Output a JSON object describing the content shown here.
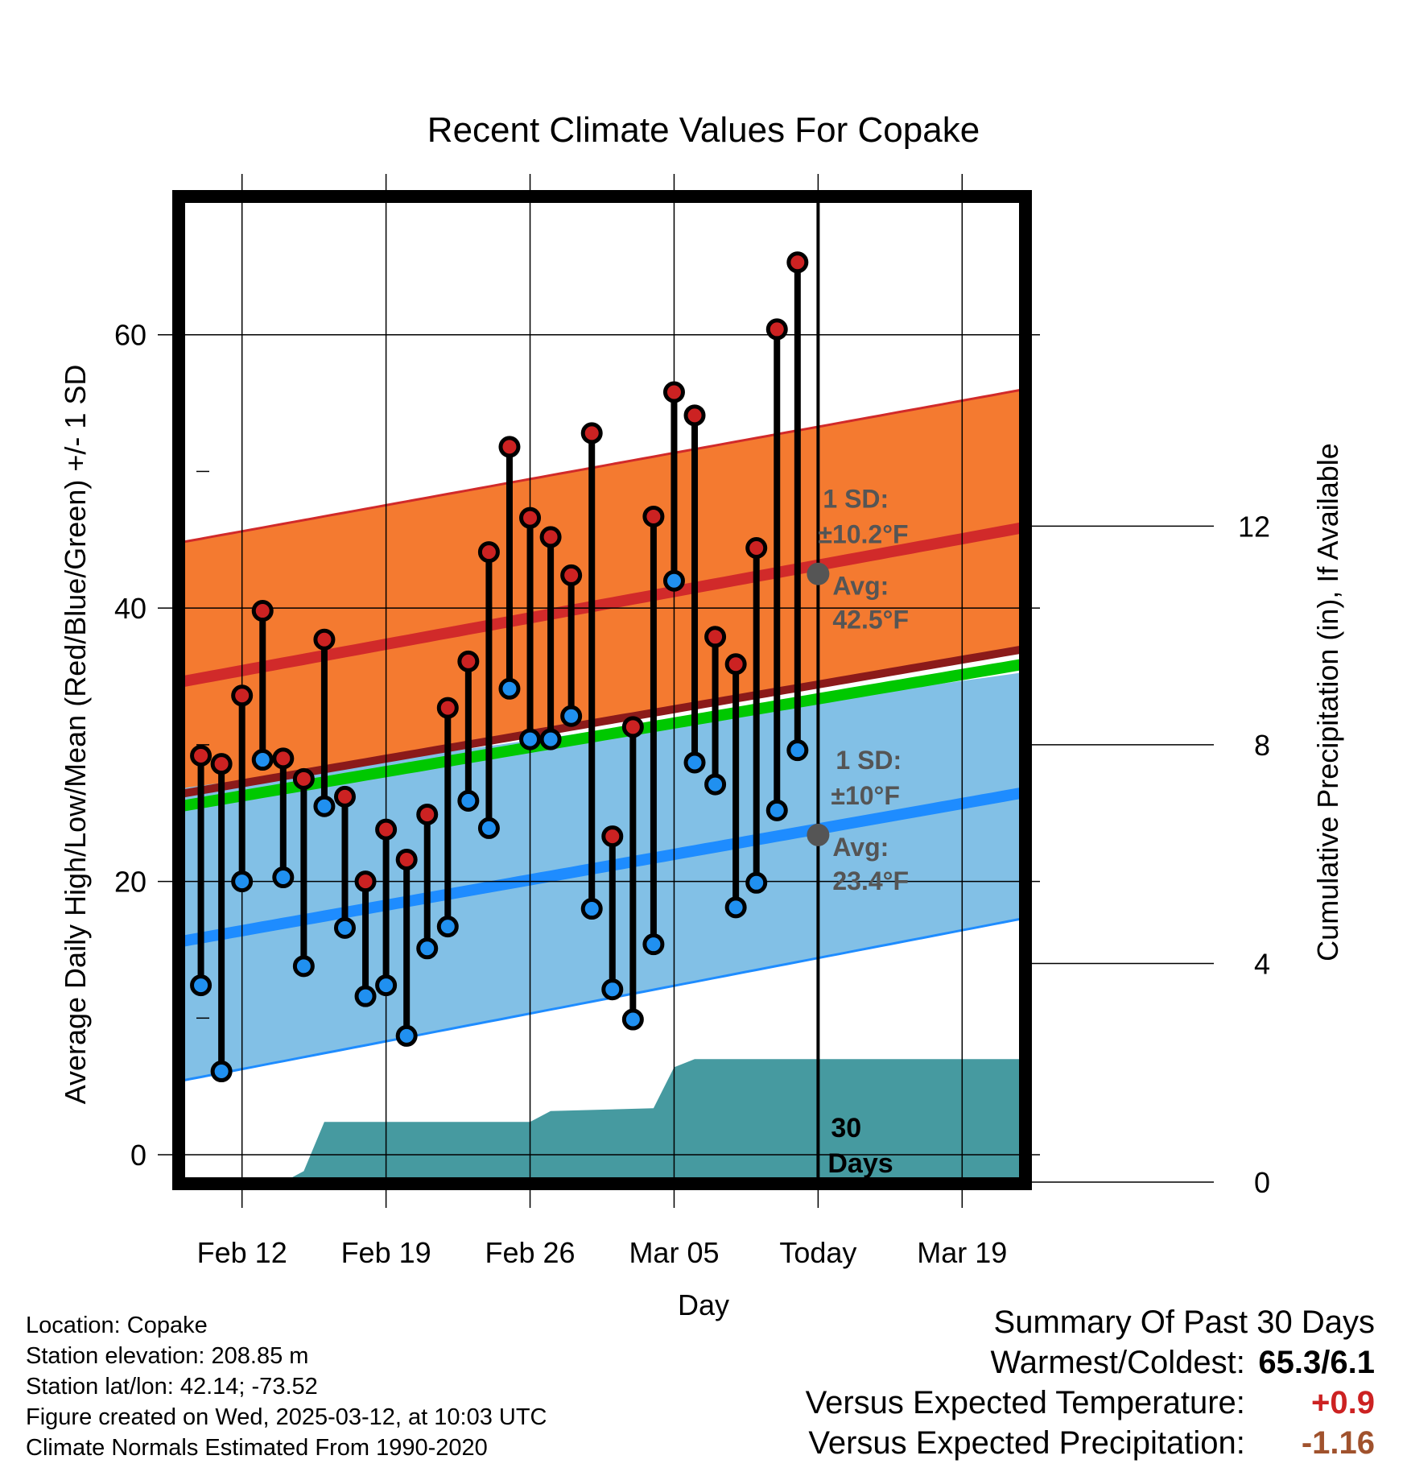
{
  "chart_data": {
    "type": "line",
    "title": "Recent Climate Values For Copake",
    "xlabel": "Day",
    "ylabel": "Average Daily High/Low/Mean (Red/Blue/Green) +/- 1 SD",
    "y2label": "Cumulative Precipitation (in), If Available",
    "ylim": [
      -2,
      70
    ],
    "y2lim": [
      0,
      18
    ],
    "xlim": [
      "2025-02-09",
      "2025-03-22"
    ],
    "x_ticks": [
      {
        "date": "2025-02-12",
        "label": "Feb 12"
      },
      {
        "date": "2025-02-19",
        "label": "Feb 19"
      },
      {
        "date": "2025-02-26",
        "label": "Feb 26"
      },
      {
        "date": "2025-03-05",
        "label": "Mar 05"
      },
      {
        "date": "2025-03-12",
        "label": "Today"
      },
      {
        "date": "2025-03-19",
        "label": "Mar 19"
      }
    ],
    "y_ticks": [
      0,
      20,
      40,
      60
    ],
    "y2_ticks": [
      0,
      4,
      8,
      12
    ],
    "today": "2025-03-12",
    "today_label": "30 Days",
    "grid": true,
    "daily": {
      "dates": [
        "2025-02-10",
        "2025-02-11",
        "2025-02-12",
        "2025-02-13",
        "2025-02-14",
        "2025-02-15",
        "2025-02-16",
        "2025-02-17",
        "2025-02-18",
        "2025-02-19",
        "2025-02-20",
        "2025-02-21",
        "2025-02-22",
        "2025-02-23",
        "2025-02-24",
        "2025-02-25",
        "2025-02-26",
        "2025-02-27",
        "2025-02-28",
        "2025-03-01",
        "2025-03-02",
        "2025-03-03",
        "2025-03-04",
        "2025-03-05",
        "2025-03-06",
        "2025-03-07",
        "2025-03-08",
        "2025-03-09",
        "2025-03-10",
        "2025-03-11"
      ],
      "high": [
        29.2,
        28.6,
        33.6,
        39.8,
        29.0,
        27.5,
        37.7,
        26.2,
        20.0,
        23.8,
        21.6,
        24.9,
        32.7,
        36.1,
        44.1,
        51.8,
        46.6,
        45.2,
        42.4,
        52.8,
        23.3,
        31.3,
        46.7,
        55.8,
        54.1,
        37.9,
        35.9,
        44.4,
        60.4,
        65.3
      ],
      "low": [
        12.4,
        6.1,
        20.0,
        28.9,
        20.3,
        13.8,
        25.5,
        16.6,
        11.6,
        12.4,
        8.7,
        15.1,
        16.7,
        25.9,
        23.9,
        34.1,
        30.4,
        30.4,
        32.1,
        18.0,
        12.1,
        9.9,
        15.4,
        42.0,
        28.7,
        27.1,
        18.1,
        19.9,
        25.2,
        29.6
      ]
    },
    "normals": {
      "dates": [
        "2025-02-09",
        "2025-03-22"
      ],
      "high_mean": [
        34.6,
        45.9
      ],
      "high_upper": [
        44.8,
        56.0
      ],
      "high_lower": [
        26.4,
        37.0
      ],
      "low_mean": [
        15.6,
        26.5
      ],
      "low_upper": [
        26.8,
        35.3
      ],
      "low_lower": [
        5.4,
        17.3
      ],
      "mean_mean": [
        25.5,
        35.9
      ]
    },
    "precip_cumulative": {
      "dates": [
        "2025-02-09",
        "2025-02-14",
        "2025-02-15",
        "2025-02-16",
        "2025-02-26",
        "2025-02-27",
        "2025-03-04",
        "2025-03-05",
        "2025-03-06",
        "2025-03-22"
      ],
      "values": [
        0,
        0,
        0.2,
        1.1,
        1.1,
        1.3,
        1.35,
        2.1,
        2.25,
        2.25
      ]
    },
    "annotations": [
      {
        "series": "high",
        "sd_label": "1 SD:",
        "sd_value": "±10.2°F",
        "avg_label": "Avg:",
        "avg_value": "42.5°F",
        "avg": 42.5
      },
      {
        "series": "low",
        "sd_label": "1 SD:",
        "sd_value": "±10°F",
        "avg_label": "Avg:",
        "avg_value": "23.4°F",
        "avg": 23.4
      }
    ],
    "colors": {
      "high_band": "#f47a30",
      "high_line": "#d12a2a",
      "low_band": "#82c0e6",
      "low_line": "#1e8cff",
      "mean_line": "#00c800",
      "high_marker": "#cc2222",
      "low_marker": "#2090f0",
      "precip": "#469aa0",
      "annotation": "#555555"
    }
  },
  "footer": {
    "location": "Location: Copake",
    "elevation": "Station elevation: 208.85 m",
    "latlon": "Station lat/lon: 42.14; -73.52",
    "created": "Figure created on Wed, 2025-03-12, at 10:03 UTC",
    "normals": "Climate Normals Estimated From 1990-2020"
  },
  "summary": {
    "title": "Summary Of Past 30 Days",
    "warmest_label": "Warmest/Coldest:",
    "warmest_value": "65.3/6.1",
    "temp_label": "Versus Expected Temperature:",
    "temp_value": "+0.9",
    "precip_label": "Versus Expected Precipitation:",
    "precip_value": "-1.16",
    "temp_color": "#cc2222",
    "precip_color": "#a0522d"
  }
}
